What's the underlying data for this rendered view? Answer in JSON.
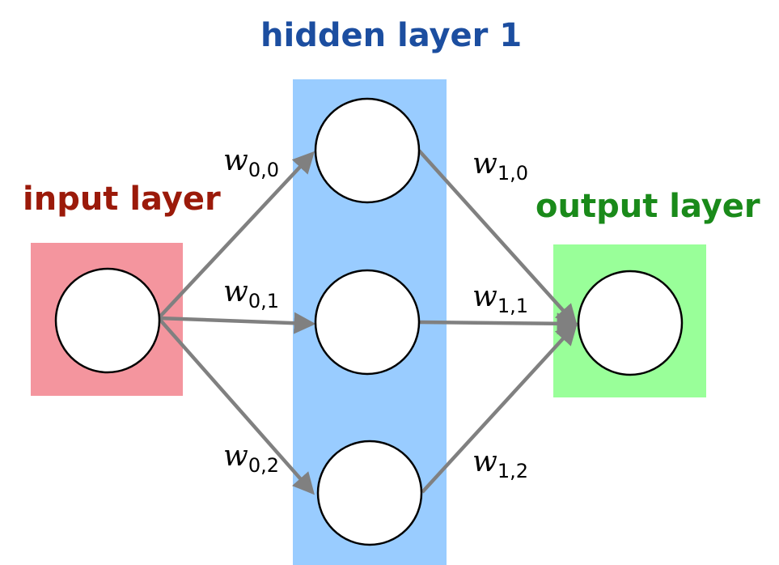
{
  "colors": {
    "input_layer": "#f4959e",
    "hidden_layer": "#99ccff",
    "output_layer": "#99ff99",
    "input_title": "#9b1a0a",
    "hidden_title": "#1c4ea0",
    "output_title": "#1a8a1a",
    "edges": "#808080",
    "node_fill": "#ffffff",
    "node_stroke": "#000000"
  },
  "layers": {
    "input": {
      "title": "input layer"
    },
    "hidden": {
      "title": "hidden layer 1"
    },
    "output": {
      "title": "output layer"
    }
  },
  "weights": {
    "w00": {
      "symbol": "w",
      "subscript": "0,0"
    },
    "w01": {
      "symbol": "w",
      "subscript": "0,1"
    },
    "w02": {
      "symbol": "w",
      "subscript": "0,2"
    },
    "w10": {
      "symbol": "w",
      "subscript": "1,0"
    },
    "w11": {
      "symbol": "w",
      "subscript": "1,1"
    },
    "w12": {
      "symbol": "w",
      "subscript": "1,2"
    }
  }
}
